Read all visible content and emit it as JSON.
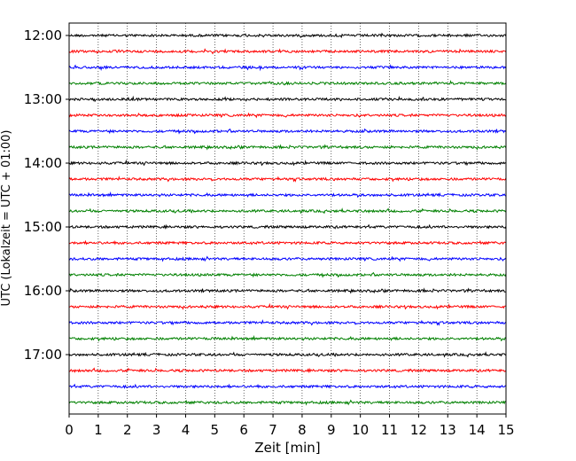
{
  "chart_data": {
    "type": "line",
    "title": "",
    "xlabel": "Zeit  [min]",
    "ylabel": "UTC (Lokalzeit = UTC + 01:00)",
    "xlim": [
      0,
      15
    ],
    "xticks": [
      0,
      1,
      2,
      3,
      4,
      5,
      6,
      7,
      8,
      9,
      10,
      11,
      12,
      13,
      14,
      15
    ],
    "xtick_labels": [
      "0",
      "1",
      "2",
      "3",
      "4",
      "5",
      "6",
      "7",
      "8",
      "9",
      "10",
      "11",
      "12",
      "13",
      "14",
      "15"
    ],
    "ytick_labels": [
      "12:00",
      "13:00",
      "14:00",
      "15:00",
      "16:00",
      "17:00"
    ],
    "trace_interval_min": 15,
    "trace_start": "12:00",
    "trace_count": 24,
    "trace_colors": [
      "#000000",
      "#ff0000",
      "#0000ff",
      "#008000"
    ],
    "grid": "vertical dotted lines at each minute",
    "legend": "none",
    "series": [
      {
        "start": "12:00",
        "color": "#000000"
      },
      {
        "start": "12:15",
        "color": "#ff0000"
      },
      {
        "start": "12:30",
        "color": "#0000ff"
      },
      {
        "start": "12:45",
        "color": "#008000"
      },
      {
        "start": "13:00",
        "color": "#000000"
      },
      {
        "start": "13:15",
        "color": "#ff0000"
      },
      {
        "start": "13:30",
        "color": "#0000ff"
      },
      {
        "start": "13:45",
        "color": "#008000"
      },
      {
        "start": "14:00",
        "color": "#000000"
      },
      {
        "start": "14:15",
        "color": "#ff0000"
      },
      {
        "start": "14:30",
        "color": "#0000ff"
      },
      {
        "start": "14:45",
        "color": "#008000"
      },
      {
        "start": "15:00",
        "color": "#000000"
      },
      {
        "start": "15:15",
        "color": "#ff0000"
      },
      {
        "start": "15:30",
        "color": "#0000ff"
      },
      {
        "start": "15:45",
        "color": "#008000"
      },
      {
        "start": "16:00",
        "color": "#000000"
      },
      {
        "start": "16:15",
        "color": "#ff0000"
      },
      {
        "start": "16:30",
        "color": "#0000ff"
      },
      {
        "start": "16:45",
        "color": "#008000"
      },
      {
        "start": "17:00",
        "color": "#000000"
      },
      {
        "start": "17:15",
        "color": "#ff0000"
      },
      {
        "start": "17:30",
        "color": "#0000ff"
      },
      {
        "start": "17:45",
        "color": "#008000"
      }
    ]
  }
}
